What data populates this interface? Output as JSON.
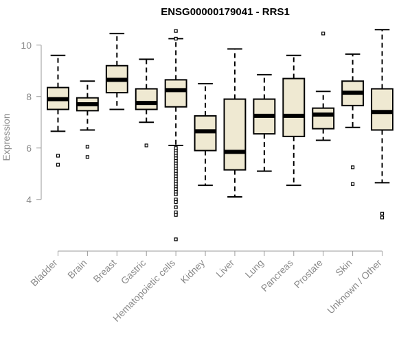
{
  "chart_data": {
    "type": "boxplot",
    "title": "ENSG00000179041 - RRS1",
    "xlabel": "",
    "ylabel": "Expression",
    "ylim": [
      2.1,
      10.9
    ],
    "yticks": [
      4,
      6,
      8,
      10
    ],
    "box_color": "#efe9d2",
    "categories": [
      "Bladder",
      "Brain",
      "Breast",
      "Gastric",
      "Hematopoietic cells",
      "Kidney",
      "Liver",
      "Lung",
      "Pancreas",
      "Prostate",
      "Skin",
      "Unknown / Other"
    ],
    "series": [
      {
        "name": "Bladder",
        "min": 6.65,
        "q1": 7.5,
        "median": 7.9,
        "q3": 8.35,
        "max": 9.6,
        "outliers": [
          5.7,
          5.35
        ]
      },
      {
        "name": "Brain",
        "min": 6.7,
        "q1": 7.45,
        "median": 7.7,
        "q3": 7.95,
        "max": 8.6,
        "outliers": [
          6.05,
          5.65
        ]
      },
      {
        "name": "Breast",
        "min": 7.5,
        "q1": 8.15,
        "median": 8.65,
        "q3": 9.2,
        "max": 10.45,
        "outliers": []
      },
      {
        "name": "Gastric",
        "min": 7.0,
        "q1": 7.5,
        "median": 7.75,
        "q3": 8.3,
        "max": 9.45,
        "outliers": [
          6.1
        ]
      },
      {
        "name": "Hematopoietic cells",
        "min": 6.1,
        "q1": 7.6,
        "median": 8.25,
        "q3": 8.65,
        "max": 10.25,
        "outliers": [
          10.55,
          10.25,
          6.0,
          5.9,
          5.8,
          5.7,
          5.6,
          5.5,
          5.4,
          5.3,
          5.2,
          5.1,
          5.0,
          4.9,
          4.8,
          4.7,
          4.6,
          4.5,
          4.4,
          4.3,
          4.2,
          4.0,
          3.9,
          3.7,
          3.5,
          3.4,
          2.45
        ]
      },
      {
        "name": "Kidney",
        "min": 4.55,
        "q1": 5.9,
        "median": 6.65,
        "q3": 7.25,
        "max": 8.5,
        "outliers": []
      },
      {
        "name": "Liver",
        "min": 4.1,
        "q1": 5.15,
        "median": 5.85,
        "q3": 7.9,
        "max": 9.85,
        "outliers": []
      },
      {
        "name": "Lung",
        "min": 5.1,
        "q1": 6.55,
        "median": 7.25,
        "q3": 7.9,
        "max": 8.85,
        "outliers": []
      },
      {
        "name": "Pancreas",
        "min": 4.55,
        "q1": 6.45,
        "median": 7.25,
        "q3": 8.7,
        "max": 9.6,
        "outliers": []
      },
      {
        "name": "Prostate",
        "min": 6.3,
        "q1": 6.75,
        "median": 7.3,
        "q3": 7.55,
        "max": 8.2,
        "outliers": [
          10.45
        ]
      },
      {
        "name": "Skin",
        "min": 6.8,
        "q1": 7.65,
        "median": 8.15,
        "q3": 8.6,
        "max": 9.65,
        "outliers": [
          5.25,
          4.6
        ]
      },
      {
        "name": "Unknown / Other",
        "min": 4.65,
        "q1": 6.7,
        "median": 7.4,
        "q3": 8.3,
        "max": 10.6,
        "outliers": [
          3.45,
          3.3
        ]
      }
    ]
  }
}
